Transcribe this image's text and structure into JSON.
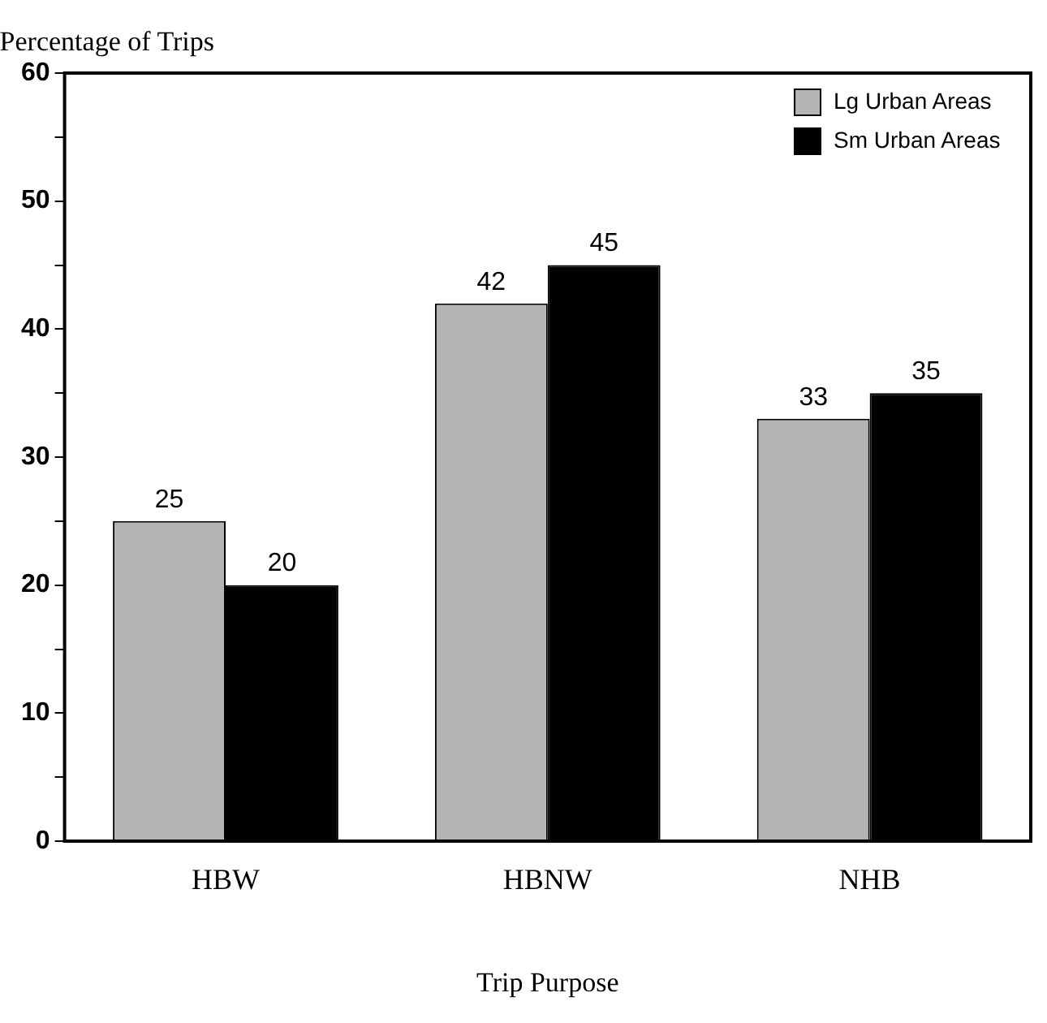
{
  "chart_data": {
    "type": "bar",
    "xlabel": "Trip Purpose",
    "ylabel": "Percentage of Trips",
    "categories": [
      "HBW",
      "HBNW",
      "NHB"
    ],
    "series": [
      {
        "name": "Lg Urban Areas",
        "color": "#b4b4b4",
        "values": [
          25,
          42,
          33
        ]
      },
      {
        "name": "Sm Urban Areas",
        "color": "#000000",
        "values": [
          20,
          45,
          35
        ]
      }
    ],
    "ylim": [
      0,
      60
    ],
    "yticks": [
      0,
      {
        "value": 5,
        "label": null
      },
      10,
      {
        "value": 15,
        "label": null
      },
      20,
      {
        "value": 25,
        "label": null
      },
      30,
      {
        "value": 35,
        "label": null
      },
      40,
      {
        "value": 45,
        "label": null
      },
      50,
      {
        "value": 55,
        "label": null
      },
      60
    ],
    "grid": false,
    "legend": "top right",
    "data_labels": true
  }
}
